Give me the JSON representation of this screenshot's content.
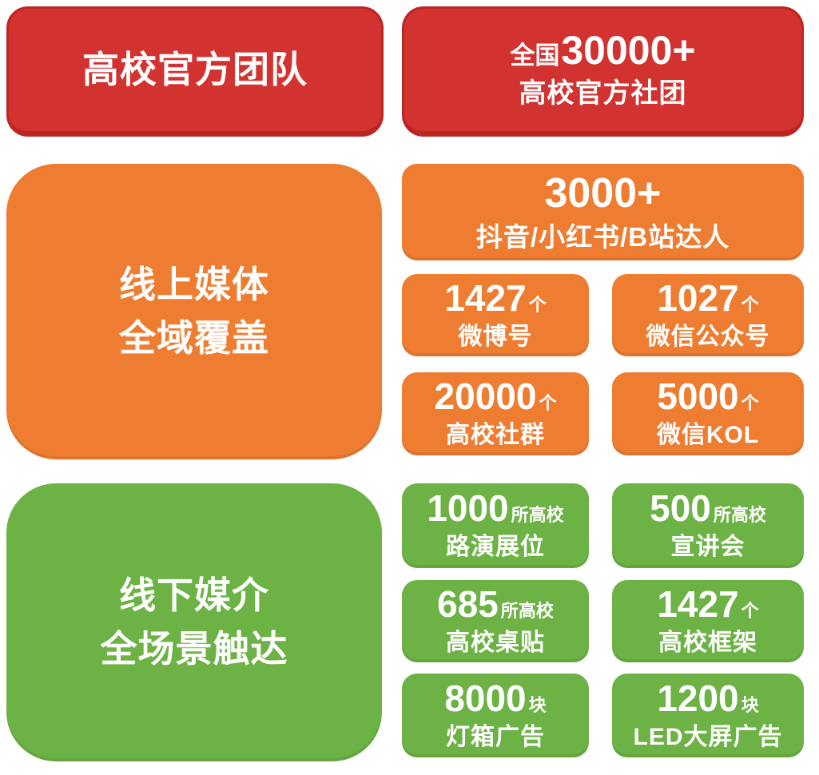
{
  "colors": {
    "red": "#d23230",
    "red_border": "#bc2622",
    "orange": "#ee7d32",
    "green": "#6cb244",
    "text": "#ffffff",
    "background": "#ffffff"
  },
  "sections": [
    {
      "name": "official-teams",
      "color": "red",
      "left_label": "高校官方团队",
      "hero": {
        "prefix": "全国",
        "number": "30000+",
        "label": "高校官方社团"
      }
    },
    {
      "name": "online-media",
      "color": "orange",
      "left_label_line1": "线上媒体",
      "left_label_line2": "全域覆盖",
      "wide_card": {
        "number": "3000+",
        "label": "抖音/小红书/B站达人"
      },
      "cards": [
        {
          "number": "1427",
          "unit": "个",
          "label": "微博号"
        },
        {
          "number": "1027",
          "unit": "个",
          "label": "微信公众号"
        },
        {
          "number": "20000",
          "unit": "个",
          "label": "高校社群"
        },
        {
          "number": "5000",
          "unit": "个",
          "label": "微信KOL"
        }
      ]
    },
    {
      "name": "offline-media",
      "color": "green",
      "left_label_line1": "线下媒介",
      "left_label_line2": "全场景触达",
      "cards": [
        {
          "number": "1000",
          "unit": "所高校",
          "label": "路演展位"
        },
        {
          "number": "500",
          "unit": "所高校",
          "label": "宣讲会"
        },
        {
          "number": "685",
          "unit": "所高校",
          "label": "高校桌贴"
        },
        {
          "number": "1427",
          "unit": "个",
          "label": "高校框架"
        },
        {
          "number": "8000",
          "unit": "块",
          "label": "灯箱广告"
        },
        {
          "number": "1200",
          "unit": "块",
          "label": "LED大屏广告"
        }
      ]
    }
  ]
}
